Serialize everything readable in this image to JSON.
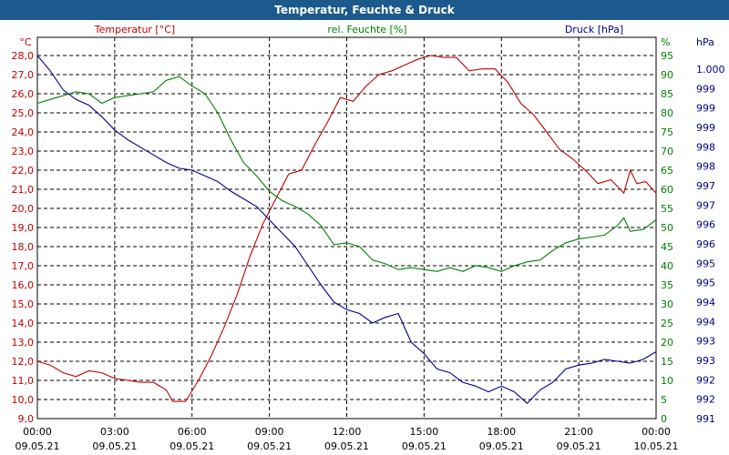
{
  "chart_data": {
    "type": "line",
    "title": "Temperatur, Feuchte & Druck",
    "x_ticks": [
      {
        "time": "00:00",
        "date": "09.05.21"
      },
      {
        "time": "03:00",
        "date": "09.05.21"
      },
      {
        "time": "06:00",
        "date": "09.05.21"
      },
      {
        "time": "09:00",
        "date": "09.05.21"
      },
      {
        "time": "12:00",
        "date": "09.05.21"
      },
      {
        "time": "15:00",
        "date": "09.05.21"
      },
      {
        "time": "18:00",
        "date": "09.05.21"
      },
      {
        "time": "21:00",
        "date": "09.05.21"
      },
      {
        "time": "00:00",
        "date": "10.05.21"
      }
    ],
    "xlim": [
      0,
      24
    ],
    "axes": {
      "temp": {
        "label": "Temperatur [°C]",
        "unit": "°C",
        "min": 9.0,
        "max": 28.0,
        "step": 1.0,
        "color": "#c00000",
        "ticks": [
          "9,0",
          "10,0",
          "11,0",
          "12,0",
          "13,0",
          "14,0",
          "15,0",
          "16,0",
          "17,0",
          "18,0",
          "19,0",
          "20,0",
          "21,0",
          "22,0",
          "23,0",
          "24,0",
          "25,0",
          "26,0",
          "27,0",
          "28,0"
        ]
      },
      "hum": {
        "label": "rel. Feuchte [%]",
        "unit": "%",
        "min": 0,
        "max": 95,
        "step": 5,
        "color": "#008000",
        "ticks": [
          "0",
          "5",
          "10",
          "15",
          "20",
          "25",
          "30",
          "35",
          "40",
          "45",
          "50",
          "55",
          "60",
          "65",
          "70",
          "75",
          "80",
          "85",
          "90",
          "95"
        ]
      },
      "press": {
        "label": "Druck [hPa]",
        "unit": "hPa",
        "min": 991,
        "max": 1000.5,
        "color": "#00008b",
        "ticks": [
          "991",
          "992",
          "992",
          "993",
          "993",
          "994",
          "994",
          "995",
          "995",
          "996",
          "996",
          "997",
          "997",
          "998",
          "998",
          "999",
          "999",
          "999",
          "1.000"
        ]
      }
    },
    "series": [
      {
        "name": "Temperatur",
        "axis": "temp",
        "color": "#c00000",
        "points": [
          [
            0,
            12.0
          ],
          [
            0.5,
            11.8
          ],
          [
            1,
            11.4
          ],
          [
            1.5,
            11.2
          ],
          [
            2,
            11.5
          ],
          [
            2.5,
            11.4
          ],
          [
            3,
            11.1
          ],
          [
            3.5,
            11.0
          ],
          [
            4,
            10.9
          ],
          [
            4.5,
            10.9
          ],
          [
            5,
            10.5
          ],
          [
            5.25,
            9.9
          ],
          [
            5.75,
            9.9
          ],
          [
            6.25,
            11.0
          ],
          [
            6.75,
            12.3
          ],
          [
            7.25,
            13.8
          ],
          [
            7.75,
            15.5
          ],
          [
            8.25,
            17.5
          ],
          [
            8.75,
            19.2
          ],
          [
            9.25,
            20.5
          ],
          [
            9.75,
            21.8
          ],
          [
            10.25,
            22.0
          ],
          [
            10.75,
            23.3
          ],
          [
            11.25,
            24.5
          ],
          [
            11.75,
            25.8
          ],
          [
            12.25,
            25.6
          ],
          [
            12.75,
            26.4
          ],
          [
            13.25,
            27.0
          ],
          [
            13.75,
            27.2
          ],
          [
            14.25,
            27.5
          ],
          [
            14.75,
            27.8
          ],
          [
            15.25,
            28.0
          ],
          [
            15.75,
            27.9
          ],
          [
            16.25,
            27.9
          ],
          [
            16.75,
            27.2
          ],
          [
            17.25,
            27.3
          ],
          [
            17.75,
            27.3
          ],
          [
            18.25,
            26.6
          ],
          [
            18.75,
            25.5
          ],
          [
            19.25,
            24.9
          ],
          [
            19.75,
            24.0
          ],
          [
            20.25,
            23.1
          ],
          [
            20.75,
            22.6
          ],
          [
            21.25,
            22.0
          ],
          [
            21.75,
            21.3
          ],
          [
            22.25,
            21.5
          ],
          [
            22.75,
            20.8
          ],
          [
            23.0,
            22.0
          ],
          [
            23.25,
            21.3
          ],
          [
            23.6,
            21.4
          ],
          [
            24.0,
            20.8
          ]
        ]
      },
      {
        "name": "rel. Feuchte",
        "axis": "hum",
        "color": "#008000",
        "points": [
          [
            0,
            82.5
          ],
          [
            0.5,
            83.5
          ],
          [
            1,
            84.5
          ],
          [
            1.5,
            85.5
          ],
          [
            2,
            85.0
          ],
          [
            2.5,
            82.5
          ],
          [
            3,
            84.0
          ],
          [
            3.5,
            84.5
          ],
          [
            4,
            85.0
          ],
          [
            4.5,
            85.5
          ],
          [
            5,
            88.5
          ],
          [
            5.5,
            89.5
          ],
          [
            6,
            87.0
          ],
          [
            6.5,
            85.0
          ],
          [
            7,
            80.0
          ],
          [
            7.5,
            73.0
          ],
          [
            8,
            67.0
          ],
          [
            8.5,
            63.5
          ],
          [
            9,
            59.5
          ],
          [
            9.5,
            57.0
          ],
          [
            10,
            55.5
          ],
          [
            10.5,
            53.5
          ],
          [
            11,
            50.5
          ],
          [
            11.5,
            45.5
          ],
          [
            12,
            46.0
          ],
          [
            12.5,
            45.0
          ],
          [
            13,
            41.5
          ],
          [
            13.5,
            40.5
          ],
          [
            14,
            39.0
          ],
          [
            14.5,
            39.5
          ],
          [
            15,
            39.0
          ],
          [
            15.5,
            38.5
          ],
          [
            16,
            39.5
          ],
          [
            16.5,
            38.5
          ],
          [
            17,
            40.0
          ],
          [
            17.5,
            39.5
          ],
          [
            18,
            38.5
          ],
          [
            18.5,
            40.0
          ],
          [
            19,
            41.0
          ],
          [
            19.5,
            41.5
          ],
          [
            20,
            44.0
          ],
          [
            20.5,
            46.0
          ],
          [
            21,
            47.0
          ],
          [
            21.5,
            47.5
          ],
          [
            22,
            48.0
          ],
          [
            22.5,
            50.5
          ],
          [
            22.75,
            52.5
          ],
          [
            23,
            49.0
          ],
          [
            23.5,
            49.5
          ],
          [
            24,
            52.0
          ]
        ]
      },
      {
        "name": "Druck",
        "axis": "press",
        "color": "#00008b",
        "points": [
          [
            0,
            1000.5
          ],
          [
            0.5,
            1000.1
          ],
          [
            1,
            999.6
          ],
          [
            1.5,
            999.35
          ],
          [
            2,
            999.2
          ],
          [
            2.5,
            998.9
          ],
          [
            3,
            998.55
          ],
          [
            3.5,
            998.3
          ],
          [
            4,
            998.1
          ],
          [
            4.5,
            997.9
          ],
          [
            5,
            997.7
          ],
          [
            5.5,
            997.55
          ],
          [
            6,
            997.5
          ],
          [
            6.5,
            997.35
          ],
          [
            7,
            997.2
          ],
          [
            7.5,
            996.95
          ],
          [
            8,
            996.75
          ],
          [
            8.5,
            996.55
          ],
          [
            9,
            996.2
          ],
          [
            9.5,
            995.85
          ],
          [
            10,
            995.5
          ],
          [
            10.5,
            995.0
          ],
          [
            11,
            994.5
          ],
          [
            11.5,
            994.05
          ],
          [
            12,
            993.85
          ],
          [
            12.5,
            993.75
          ],
          [
            13,
            993.5
          ],
          [
            13.5,
            993.65
          ],
          [
            14,
            993.75
          ],
          [
            14.5,
            993.0
          ],
          [
            15,
            992.7
          ],
          [
            15.5,
            992.3
          ],
          [
            16,
            992.2
          ],
          [
            16.5,
            991.95
          ],
          [
            17,
            991.85
          ],
          [
            17.5,
            991.7
          ],
          [
            18,
            991.85
          ],
          [
            18.5,
            991.7
          ],
          [
            19,
            991.4
          ],
          [
            19.5,
            991.75
          ],
          [
            20,
            991.95
          ],
          [
            20.5,
            992.3
          ],
          [
            21,
            992.4
          ],
          [
            21.5,
            992.45
          ],
          [
            22,
            992.55
          ],
          [
            22.5,
            992.5
          ],
          [
            23,
            992.45
          ],
          [
            23.5,
            992.55
          ],
          [
            24,
            992.75
          ]
        ]
      }
    ]
  }
}
